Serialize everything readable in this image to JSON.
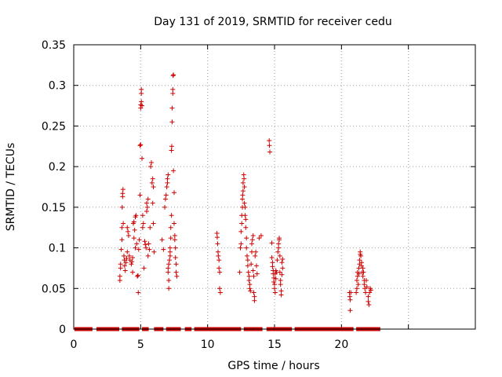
{
  "chart_data": {
    "type": "scatter",
    "title": "Day 131 of 2019, SRMTID for receiver cedu",
    "xlabel": "GPS time / hours",
    "ylabel": "SRMTID / TECUs",
    "xlim": [
      0,
      30
    ],
    "ylim": [
      0,
      0.35
    ],
    "xticks": [
      0,
      5,
      10,
      15,
      20
    ],
    "yticks": [
      0,
      0.05,
      0.1,
      0.15,
      0.2,
      0.25,
      0.3,
      0.35
    ],
    "ytick_labels": [
      "0",
      "0.05",
      "0.1",
      "0.15",
      "0.2",
      "0.25",
      "0.3",
      "0.35"
    ],
    "grid": true,
    "marker": "+",
    "color": "#cc0000",
    "zero_segments": [
      [
        0.05,
        1.4
      ],
      [
        1.7,
        3.4
      ],
      [
        3.6,
        4.9
      ],
      [
        5.1,
        5.6
      ],
      [
        6.0,
        6.7
      ],
      [
        6.9,
        8.0
      ],
      [
        8.3,
        8.8
      ],
      [
        9.0,
        12.5
      ],
      [
        12.7,
        14.1
      ],
      [
        14.4,
        16.3
      ],
      [
        16.5,
        20.9
      ],
      [
        21.1,
        22.9
      ]
    ],
    "points": [
      [
        3.45,
        0.06
      ],
      [
        3.45,
        0.065
      ],
      [
        3.5,
        0.075
      ],
      [
        3.5,
        0.08
      ],
      [
        3.55,
        0.098
      ],
      [
        3.6,
        0.11
      ],
      [
        3.6,
        0.125
      ],
      [
        3.62,
        0.15
      ],
      [
        3.65,
        0.163
      ],
      [
        3.65,
        0.167
      ],
      [
        3.68,
        0.172
      ],
      [
        3.7,
        0.13
      ],
      [
        3.75,
        0.09
      ],
      [
        3.78,
        0.085
      ],
      [
        3.8,
        0.078
      ],
      [
        3.85,
        0.072
      ],
      [
        3.9,
        0.082
      ],
      [
        3.95,
        0.087
      ],
      [
        4.0,
        0.095
      ],
      [
        4.0,
        0.125
      ],
      [
        4.05,
        0.12
      ],
      [
        4.1,
        0.115
      ],
      [
        4.15,
        0.09
      ],
      [
        4.2,
        0.085
      ],
      [
        4.3,
        0.08
      ],
      [
        4.35,
        0.083
      ],
      [
        4.4,
        0.088
      ],
      [
        4.4,
        0.07
      ],
      [
        4.45,
        0.13
      ],
      [
        4.5,
        0.132
      ],
      [
        4.5,
        0.112
      ],
      [
        4.55,
        0.122
      ],
      [
        4.6,
        0.1
      ],
      [
        4.6,
        0.138
      ],
      [
        4.65,
        0.14
      ],
      [
        4.7,
        0.105
      ],
      [
        4.75,
        0.065
      ],
      [
        4.8,
        0.066
      ],
      [
        4.82,
        0.045
      ],
      [
        4.85,
        0.098
      ],
      [
        4.9,
        0.11
      ],
      [
        4.95,
        0.165
      ],
      [
        4.95,
        0.226
      ],
      [
        5.0,
        0.227
      ],
      [
        5.0,
        0.272
      ],
      [
        5.0,
        0.276
      ],
      [
        5.05,
        0.28
      ],
      [
        5.05,
        0.29
      ],
      [
        5.05,
        0.295
      ],
      [
        5.1,
        0.275
      ],
      [
        5.1,
        0.21
      ],
      [
        5.15,
        0.125
      ],
      [
        5.15,
        0.14
      ],
      [
        5.2,
        0.13
      ],
      [
        5.25,
        0.075
      ],
      [
        5.3,
        0.108
      ],
      [
        5.35,
        0.104
      ],
      [
        5.4,
        0.1
      ],
      [
        5.45,
        0.145
      ],
      [
        5.45,
        0.155
      ],
      [
        5.5,
        0.15
      ],
      [
        5.55,
        0.16
      ],
      [
        5.55,
        0.09
      ],
      [
        5.6,
        0.105
      ],
      [
        5.65,
        0.098
      ],
      [
        5.7,
        0.125
      ],
      [
        5.75,
        0.2
      ],
      [
        5.8,
        0.205
      ],
      [
        5.85,
        0.18
      ],
      [
        5.9,
        0.185
      ],
      [
        5.95,
        0.175
      ],
      [
        5.95,
        0.13
      ],
      [
        6.0,
        0.095
      ],
      [
        5.9,
        0.155
      ],
      [
        6.6,
        0.11
      ],
      [
        6.7,
        0.098
      ],
      [
        6.8,
        0.15
      ],
      [
        6.85,
        0.16
      ],
      [
        6.9,
        0.165
      ],
      [
        6.95,
        0.175
      ],
      [
        7.0,
        0.18
      ],
      [
        7.0,
        0.185
      ],
      [
        7.05,
        0.19
      ],
      [
        7.05,
        0.075
      ],
      [
        7.05,
        0.07
      ],
      [
        7.1,
        0.06
      ],
      [
        7.1,
        0.08
      ],
      [
        7.1,
        0.05
      ],
      [
        7.15,
        0.085
      ],
      [
        7.2,
        0.09
      ],
      [
        7.2,
        0.095
      ],
      [
        7.2,
        0.1
      ],
      [
        7.25,
        0.112
      ],
      [
        7.25,
        0.125
      ],
      [
        7.3,
        0.14
      ],
      [
        7.3,
        0.22
      ],
      [
        7.32,
        0.225
      ],
      [
        7.35,
        0.255
      ],
      [
        7.35,
        0.272
      ],
      [
        7.4,
        0.29
      ],
      [
        7.4,
        0.295
      ],
      [
        7.42,
        0.312
      ],
      [
        7.45,
        0.313
      ],
      [
        7.45,
        0.195
      ],
      [
        7.5,
        0.168
      ],
      [
        7.5,
        0.13
      ],
      [
        7.55,
        0.115
      ],
      [
        7.55,
        0.11
      ],
      [
        7.6,
        0.1
      ],
      [
        7.6,
        0.088
      ],
      [
        7.65,
        0.08
      ],
      [
        7.65,
        0.07
      ],
      [
        7.7,
        0.065
      ],
      [
        10.7,
        0.118
      ],
      [
        10.72,
        0.113
      ],
      [
        10.75,
        0.105
      ],
      [
        10.78,
        0.095
      ],
      [
        10.8,
        0.09
      ],
      [
        10.85,
        0.085
      ],
      [
        10.85,
        0.075
      ],
      [
        10.9,
        0.07
      ],
      [
        10.9,
        0.05
      ],
      [
        10.95,
        0.045
      ],
      [
        12.4,
        0.07
      ],
      [
        12.45,
        0.1
      ],
      [
        12.5,
        0.105
      ],
      [
        12.5,
        0.12
      ],
      [
        12.55,
        0.13
      ],
      [
        12.55,
        0.14
      ],
      [
        12.6,
        0.15
      ],
      [
        12.6,
        0.16
      ],
      [
        12.62,
        0.165
      ],
      [
        12.65,
        0.17
      ],
      [
        12.65,
        0.18
      ],
      [
        12.7,
        0.19
      ],
      [
        12.72,
        0.185
      ],
      [
        12.75,
        0.175
      ],
      [
        12.75,
        0.155
      ],
      [
        12.8,
        0.15
      ],
      [
        12.8,
        0.14
      ],
      [
        12.85,
        0.135
      ],
      [
        12.85,
        0.125
      ],
      [
        12.9,
        0.112
      ],
      [
        12.9,
        0.1
      ],
      [
        12.95,
        0.09
      ],
      [
        13.0,
        0.085
      ],
      [
        13.0,
        0.078
      ],
      [
        13.05,
        0.07
      ],
      [
        13.1,
        0.065
      ],
      [
        13.1,
        0.06
      ],
      [
        13.15,
        0.055
      ],
      [
        13.15,
        0.05
      ],
      [
        13.2,
        0.047
      ],
      [
        13.25,
        0.08
      ],
      [
        13.3,
        0.095
      ],
      [
        13.3,
        0.105
      ],
      [
        13.35,
        0.11
      ],
      [
        13.4,
        0.115
      ],
      [
        13.4,
        0.072
      ],
      [
        13.45,
        0.065
      ],
      [
        13.45,
        0.045
      ],
      [
        13.5,
        0.04
      ],
      [
        13.5,
        0.035
      ],
      [
        13.55,
        0.09
      ],
      [
        13.6,
        0.095
      ],
      [
        13.65,
        0.078
      ],
      [
        13.7,
        0.068
      ],
      [
        13.85,
        0.112
      ],
      [
        14.0,
        0.115
      ],
      [
        14.6,
        0.232
      ],
      [
        14.62,
        0.226
      ],
      [
        14.65,
        0.218
      ],
      [
        14.8,
        0.106
      ],
      [
        14.8,
        0.088
      ],
      [
        14.85,
        0.082
      ],
      [
        14.85,
        0.077
      ],
      [
        14.9,
        0.072
      ],
      [
        14.9,
        0.068
      ],
      [
        14.95,
        0.063
      ],
      [
        14.95,
        0.058
      ],
      [
        15.0,
        0.055
      ],
      [
        15.0,
        0.05
      ],
      [
        15.05,
        0.045
      ],
      [
        15.05,
        0.068
      ],
      [
        15.1,
        0.072
      ],
      [
        15.1,
        0.062
      ],
      [
        15.15,
        0.07
      ],
      [
        15.2,
        0.085
      ],
      [
        15.25,
        0.095
      ],
      [
        15.3,
        0.1
      ],
      [
        15.3,
        0.105
      ],
      [
        15.35,
        0.112
      ],
      [
        15.35,
        0.11
      ],
      [
        15.4,
        0.09
      ],
      [
        15.4,
        0.07
      ],
      [
        15.45,
        0.06
      ],
      [
        15.45,
        0.055
      ],
      [
        15.5,
        0.047
      ],
      [
        15.5,
        0.042
      ],
      [
        15.55,
        0.082
      ],
      [
        15.6,
        0.086
      ],
      [
        15.55,
        0.067
      ],
      [
        15.6,
        0.075
      ],
      [
        20.6,
        0.045
      ],
      [
        20.62,
        0.04
      ],
      [
        20.65,
        0.036
      ],
      [
        20.7,
        0.045
      ],
      [
        20.65,
        0.023
      ],
      [
        21.1,
        0.045
      ],
      [
        21.15,
        0.05
      ],
      [
        21.15,
        0.06
      ],
      [
        21.2,
        0.07
      ],
      [
        21.2,
        0.065
      ],
      [
        21.25,
        0.055
      ],
      [
        21.3,
        0.068
      ],
      [
        21.3,
        0.075
      ],
      [
        21.35,
        0.08
      ],
      [
        21.35,
        0.085
      ],
      [
        21.4,
        0.092
      ],
      [
        21.4,
        0.095
      ],
      [
        21.45,
        0.09
      ],
      [
        21.5,
        0.082
      ],
      [
        21.5,
        0.078
      ],
      [
        21.55,
        0.07
      ],
      [
        21.6,
        0.065
      ],
      [
        21.6,
        0.075
      ],
      [
        21.65,
        0.07
      ],
      [
        21.7,
        0.06
      ],
      [
        21.7,
        0.055
      ],
      [
        21.75,
        0.05
      ],
      [
        21.8,
        0.045
      ],
      [
        21.85,
        0.06
      ],
      [
        21.9,
        0.052
      ],
      [
        22.0,
        0.04
      ],
      [
        22.0,
        0.034
      ],
      [
        22.05,
        0.03
      ],
      [
        22.1,
        0.045
      ],
      [
        22.15,
        0.05
      ],
      [
        22.2,
        0.048
      ]
    ]
  }
}
